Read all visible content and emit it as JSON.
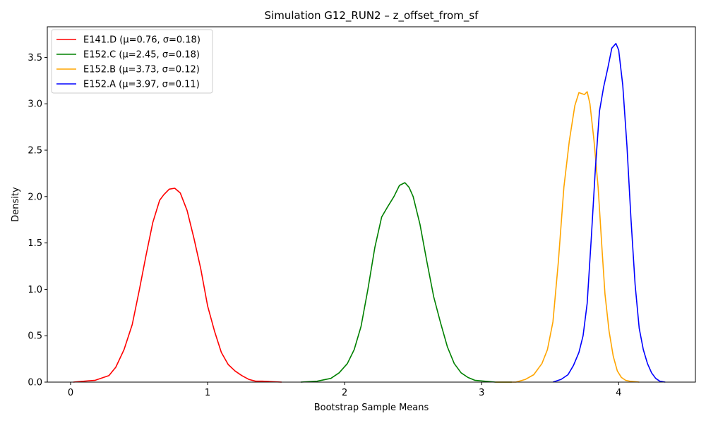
{
  "chart_data": {
    "type": "line",
    "title": "Simulation G12_RUN2 – z_offset_from_sf",
    "xlabel": "Bootstrap Sample Means",
    "ylabel": "Density",
    "xlim": [
      -0.17,
      4.56
    ],
    "ylim": [
      0.0,
      3.83
    ],
    "x_ticks": [
      0,
      1,
      2,
      3,
      4
    ],
    "x_tick_labels": [
      "0",
      "1",
      "2",
      "3",
      "4"
    ],
    "y_ticks": [
      0.0,
      0.5,
      1.0,
      1.5,
      2.0,
      2.5,
      3.0,
      3.5
    ],
    "y_tick_labels": [
      "0.0",
      "0.5",
      "1.0",
      "1.5",
      "2.0",
      "2.5",
      "3.0",
      "3.5"
    ],
    "grid": false,
    "legend_position": "top-left",
    "series": [
      {
        "name": "E141.D (μ=0.76, σ=0.18)",
        "color": "#ff0000",
        "x": [
          0.02,
          0.18,
          0.28,
          0.33,
          0.39,
          0.45,
          0.5,
          0.55,
          0.6,
          0.65,
          0.68,
          0.72,
          0.76,
          0.8,
          0.85,
          0.9,
          0.95,
          1.0,
          1.05,
          1.1,
          1.15,
          1.2,
          1.25,
          1.3,
          1.35,
          1.4,
          1.46,
          1.54
        ],
        "y": [
          0.0,
          0.02,
          0.07,
          0.16,
          0.35,
          0.62,
          0.98,
          1.36,
          1.72,
          1.96,
          2.02,
          2.08,
          2.09,
          2.04,
          1.85,
          1.55,
          1.22,
          0.82,
          0.55,
          0.32,
          0.19,
          0.12,
          0.07,
          0.03,
          0.01,
          0.01,
          0.005,
          0.0
        ]
      },
      {
        "name": "E152.C (μ=2.45, σ=0.18)",
        "color": "#008000",
        "x": [
          1.68,
          1.8,
          1.9,
          1.96,
          2.02,
          2.07,
          2.12,
          2.17,
          2.22,
          2.27,
          2.31,
          2.36,
          2.4,
          2.44,
          2.47,
          2.5,
          2.55,
          2.6,
          2.65,
          2.7,
          2.75,
          2.8,
          2.85,
          2.9,
          2.95,
          3.02,
          3.1,
          3.22
        ],
        "y": [
          0.0,
          0.01,
          0.04,
          0.1,
          0.2,
          0.35,
          0.6,
          1.0,
          1.45,
          1.78,
          1.88,
          2.0,
          2.12,
          2.15,
          2.1,
          2.0,
          1.7,
          1.3,
          0.92,
          0.64,
          0.38,
          0.2,
          0.1,
          0.05,
          0.02,
          0.01,
          0.0,
          0.0
        ]
      },
      {
        "name": "E152.B (μ=3.73, σ=0.12)",
        "color": "#ffa500",
        "x": [
          3.1,
          3.25,
          3.32,
          3.38,
          3.44,
          3.48,
          3.52,
          3.56,
          3.6,
          3.64,
          3.68,
          3.71,
          3.73,
          3.75,
          3.77,
          3.79,
          3.82,
          3.85,
          3.88,
          3.9,
          3.93,
          3.96,
          3.99,
          4.02,
          4.05,
          4.08,
          4.15
        ],
        "y": [
          0.0,
          0.0,
          0.03,
          0.08,
          0.2,
          0.35,
          0.65,
          1.3,
          2.1,
          2.6,
          2.98,
          3.12,
          3.11,
          3.1,
          3.13,
          3.0,
          2.6,
          2.1,
          1.4,
          0.95,
          0.55,
          0.28,
          0.12,
          0.05,
          0.02,
          0.01,
          0.0
        ]
      },
      {
        "name": "E152.A (μ=3.97, σ=0.11)",
        "color": "#0000ff",
        "x": [
          3.52,
          3.58,
          3.63,
          3.67,
          3.71,
          3.74,
          3.77,
          3.8,
          3.83,
          3.86,
          3.89,
          3.92,
          3.95,
          3.98,
          4.0,
          4.03,
          4.06,
          4.09,
          4.12,
          4.15,
          4.18,
          4.21,
          4.24,
          4.27,
          4.3,
          4.34
        ],
        "y": [
          0.0,
          0.03,
          0.08,
          0.18,
          0.32,
          0.5,
          0.85,
          1.55,
          2.3,
          2.92,
          3.18,
          3.38,
          3.6,
          3.65,
          3.58,
          3.2,
          2.55,
          1.75,
          1.05,
          0.58,
          0.35,
          0.2,
          0.1,
          0.04,
          0.01,
          0.0
        ]
      }
    ]
  }
}
